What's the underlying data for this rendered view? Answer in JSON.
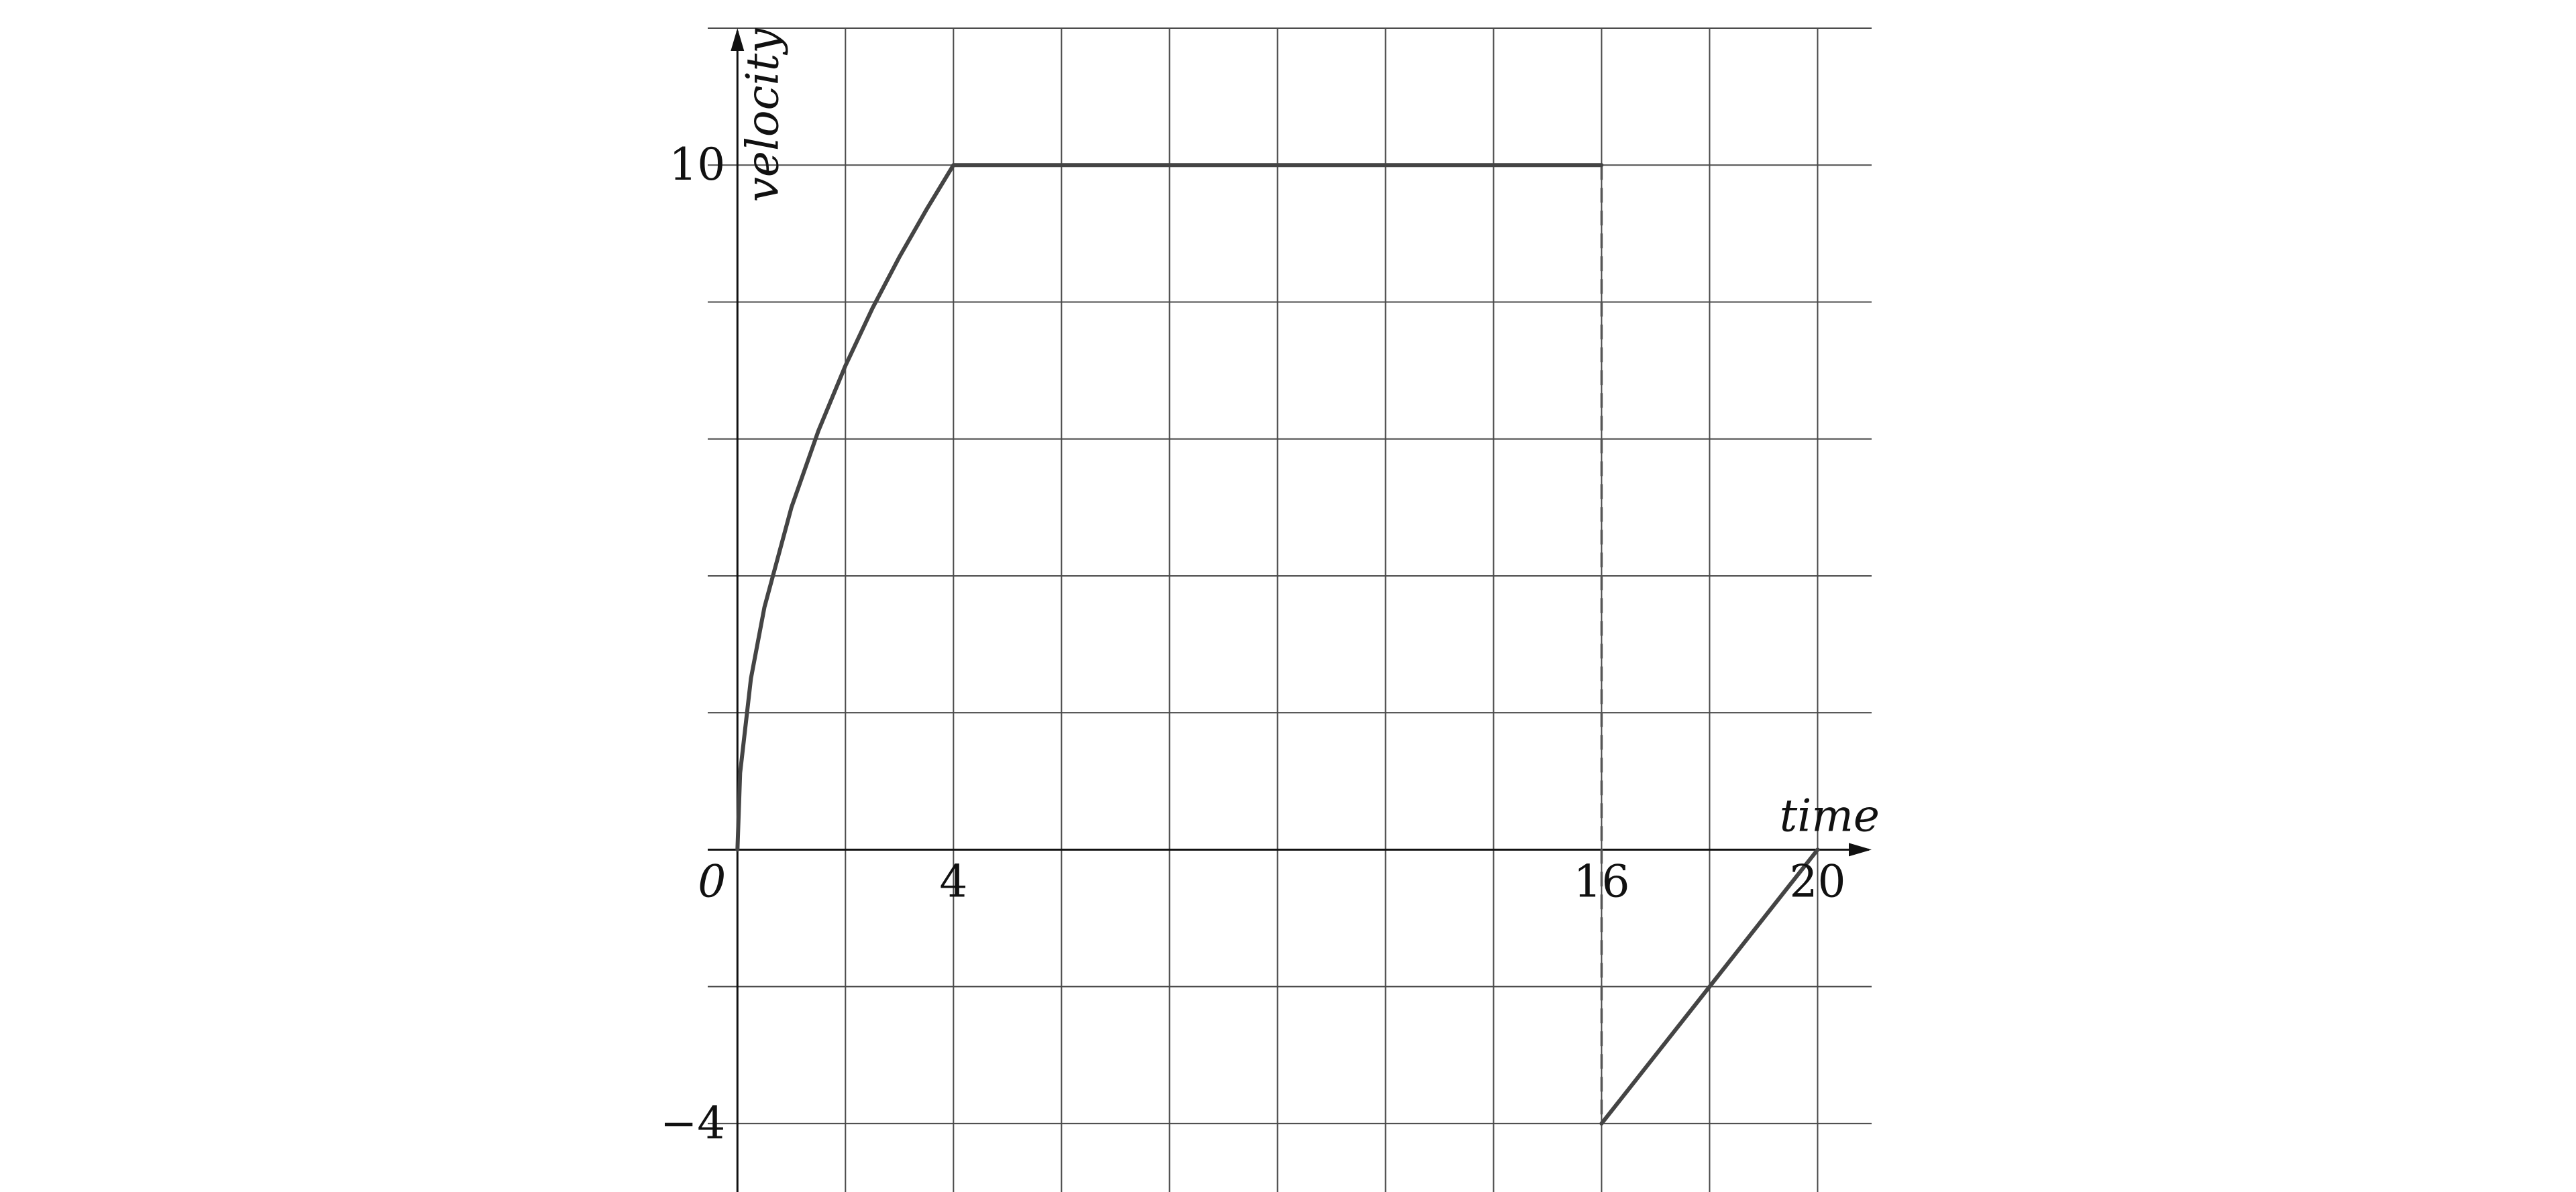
{
  "chart_data": {
    "type": "line",
    "xlabel": "time",
    "ylabel": "velocity",
    "xlim": [
      -0.55,
      21
    ],
    "ylim": [
      -5,
      12
    ],
    "x_tick_labels": [
      {
        "value": 0,
        "text": "0"
      },
      {
        "value": 4,
        "text": "4"
      },
      {
        "value": 16,
        "text": "16"
      },
      {
        "value": 20,
        "text": "20"
      }
    ],
    "y_tick_labels": [
      {
        "value": 10,
        "text": "10"
      },
      {
        "value": -4,
        "text": "−4"
      }
    ],
    "grid": true,
    "grid_x_step": 2,
    "grid_y_step": 2,
    "series": [
      {
        "points": [
          [
            0,
            0
          ],
          [
            0.05,
            1.12
          ],
          [
            0.25,
            2.5
          ],
          [
            0.5,
            3.54
          ],
          [
            1,
            5
          ],
          [
            1.5,
            6.12
          ],
          [
            2,
            7.07
          ],
          [
            2.5,
            7.91
          ],
          [
            3,
            8.66
          ],
          [
            3.5,
            9.35
          ],
          [
            4,
            10
          ],
          [
            16,
            10
          ]
        ]
      },
      {
        "points": [
          [
            16,
            -4
          ],
          [
            20,
            0
          ]
        ]
      }
    ],
    "reference_lines": [
      {
        "style": "dashed",
        "points": [
          [
            16,
            10
          ],
          [
            16,
            -4
          ]
        ]
      }
    ]
  }
}
